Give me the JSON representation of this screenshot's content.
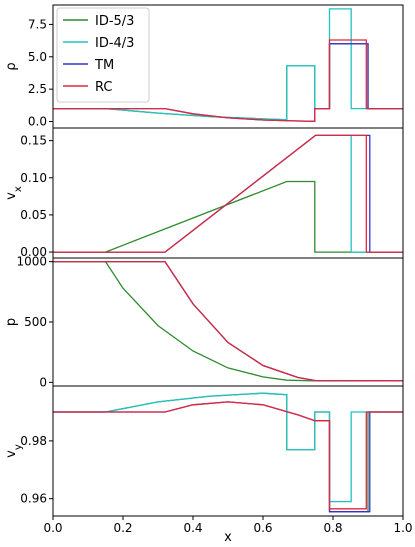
{
  "chart_data": {
    "type": "line",
    "xlabel": "x",
    "xlim": [
      0.0,
      1.0
    ],
    "xticks": [
      "0.0",
      "0.2",
      "0.4",
      "0.6",
      "0.8",
      "1.0"
    ],
    "colors": {
      "ID-5/3": "#2e8b2e",
      "ID-4/3": "#22c3c3",
      "TM": "#3333cc",
      "RC": "#e0283c"
    },
    "legend": {
      "placement": "top-left",
      "entries": [
        "ID-5/3",
        "ID-4/3",
        "TM",
        "RC"
      ]
    },
    "panels": [
      {
        "ylabel": "ρ",
        "ylim": [
          -0.5,
          9.0
        ],
        "yticks": [
          0.0,
          2.5,
          5.0,
          7.5
        ],
        "ytick_labels": [
          "0.0",
          "2.5",
          "5.0",
          "7.5"
        ],
        "series": [
          {
            "name": "ID-5/3",
            "x": [
              0.0,
              0.15,
              0.3,
              0.45,
              0.6,
              0.668,
              0.668,
              0.748,
              0.748,
              0.79,
              0.79,
              0.9,
              0.9,
              1.0
            ],
            "y": [
              1.0,
              1.0,
              0.65,
              0.38,
              0.2,
              0.13,
              4.3,
              4.3,
              1.0,
              1.0,
              6.0,
              6.0,
              1.0,
              1.0
            ]
          },
          {
            "name": "ID-4/3",
            "x": [
              0.0,
              0.15,
              0.3,
              0.45,
              0.6,
              0.668,
              0.668,
              0.748,
              0.748,
              0.79,
              0.79,
              0.852,
              0.852,
              1.0
            ],
            "y": [
              1.0,
              1.0,
              0.65,
              0.38,
              0.2,
              0.13,
              4.3,
              4.3,
              1.0,
              1.0,
              8.7,
              8.7,
              1.0,
              1.0
            ]
          },
          {
            "name": "TM",
            "x": [
              0.0,
              0.32,
              0.4,
              0.5,
              0.6,
              0.7,
              0.748,
              0.748,
              0.79,
              0.79,
              0.9,
              0.9,
              1.0
            ],
            "y": [
              1.0,
              1.0,
              0.6,
              0.28,
              0.12,
              0.04,
              0.02,
              1.0,
              1.0,
              6.0,
              6.0,
              1.0,
              1.0
            ]
          },
          {
            "name": "RC",
            "x": [
              0.0,
              0.32,
              0.4,
              0.5,
              0.6,
              0.7,
              0.748,
              0.748,
              0.79,
              0.79,
              0.895,
              0.895,
              1.0
            ],
            "y": [
              1.0,
              1.0,
              0.6,
              0.28,
              0.12,
              0.04,
              0.02,
              1.0,
              1.0,
              6.3,
              6.3,
              1.0,
              1.0
            ]
          }
        ]
      },
      {
        "ylabel": "v_x",
        "ylim": [
          -0.008,
          0.167
        ],
        "yticks": [
          0.0,
          0.05,
          0.1,
          0.15
        ],
        "ytick_labels": [
          "0.00",
          "0.05",
          "0.10",
          "0.15"
        ],
        "series": [
          {
            "name": "ID-5/3",
            "x": [
              0.0,
              0.15,
              0.668,
              0.748,
              0.748,
              1.0
            ],
            "y": [
              0.0,
              0.0,
              0.095,
              0.095,
              0.0,
              0.0
            ]
          },
          {
            "name": "ID-4/3",
            "x": [
              0.0,
              0.32,
              0.75,
              0.852,
              0.852,
              1.0
            ],
            "y": [
              0.0,
              0.0,
              0.157,
              0.157,
              0.0,
              0.0
            ]
          },
          {
            "name": "TM",
            "x": [
              0.0,
              0.32,
              0.75,
              0.905,
              0.905,
              1.0
            ],
            "y": [
              0.0,
              0.0,
              0.157,
              0.157,
              0.0,
              0.0
            ]
          },
          {
            "name": "RC",
            "x": [
              0.0,
              0.32,
              0.75,
              0.895,
              0.895,
              1.0
            ],
            "y": [
              0.0,
              0.0,
              0.157,
              0.157,
              0.0,
              0.0
            ]
          }
        ]
      },
      {
        "ylabel": "p",
        "ylim": [
          -30,
          1030
        ],
        "yticks": [
          0,
          500,
          1000
        ],
        "ytick_labels": [
          "0",
          "500",
          "1000"
        ],
        "series": [
          {
            "name": "ID-5/3",
            "x": [
              0.0,
              0.15,
              0.2,
              0.3,
              0.4,
              0.5,
              0.6,
              0.668,
              0.748,
              1.0
            ],
            "y": [
              1000,
              1000,
              780,
              470,
              260,
              120,
              45,
              18,
              12,
              12
            ]
          },
          {
            "name": "ID-4/3",
            "x": [
              0.0,
              0.32,
              0.4,
              0.5,
              0.6,
              0.7,
              0.75,
              1.0
            ],
            "y": [
              1000,
              1000,
              650,
              330,
              140,
              40,
              15,
              12
            ]
          },
          {
            "name": "TM",
            "x": [
              0.0,
              0.32,
              0.4,
              0.5,
              0.6,
              0.7,
              0.75,
              1.0
            ],
            "y": [
              1000,
              1000,
              650,
              330,
              140,
              40,
              15,
              12
            ]
          },
          {
            "name": "RC",
            "x": [
              0.0,
              0.32,
              0.4,
              0.5,
              0.6,
              0.7,
              0.75,
              1.0
            ],
            "y": [
              1000,
              1000,
              650,
              330,
              140,
              40,
              15,
              12
            ]
          }
        ]
      },
      {
        "ylabel": "v_y",
        "ylim": [
          0.954,
          0.999
        ],
        "yticks": [
          0.96,
          0.98
        ],
        "ytick_labels": [
          "0.96",
          "0.98"
        ],
        "series": [
          {
            "name": "ID-5/3",
            "x": [
              0.0,
              0.15,
              0.3,
              0.45,
              0.6,
              0.668,
              0.668,
              0.748,
              0.748,
              0.79,
              0.79,
              0.9,
              0.9,
              1.0
            ],
            "y": [
              0.99,
              0.99,
              0.9935,
              0.9955,
              0.9965,
              0.996,
              0.977,
              0.977,
              0.99,
              0.99,
              0.9555,
              0.9555,
              0.99,
              0.99
            ]
          },
          {
            "name": "ID-4/3",
            "x": [
              0.0,
              0.15,
              0.3,
              0.45,
              0.6,
              0.668,
              0.668,
              0.748,
              0.748,
              0.79,
              0.79,
              0.852,
              0.852,
              1.0
            ],
            "y": [
              0.99,
              0.99,
              0.9935,
              0.9955,
              0.9965,
              0.996,
              0.977,
              0.977,
              0.99,
              0.99,
              0.959,
              0.959,
              0.99,
              0.99
            ]
          },
          {
            "name": "TM",
            "x": [
              0.0,
              0.32,
              0.4,
              0.5,
              0.6,
              0.7,
              0.748,
              0.748,
              0.79,
              0.79,
              0.905,
              0.905,
              1.0
            ],
            "y": [
              0.99,
              0.99,
              0.9925,
              0.9935,
              0.9925,
              0.989,
              0.987,
              0.987,
              0.987,
              0.9555,
              0.9555,
              0.99,
              0.99
            ]
          },
          {
            "name": "RC",
            "x": [
              0.0,
              0.32,
              0.4,
              0.5,
              0.6,
              0.7,
              0.748,
              0.748,
              0.79,
              0.79,
              0.895,
              0.895,
              1.0
            ],
            "y": [
              0.99,
              0.99,
              0.9925,
              0.9935,
              0.9925,
              0.989,
              0.987,
              0.987,
              0.987,
              0.9565,
              0.9565,
              0.99,
              0.99
            ]
          }
        ]
      }
    ]
  }
}
